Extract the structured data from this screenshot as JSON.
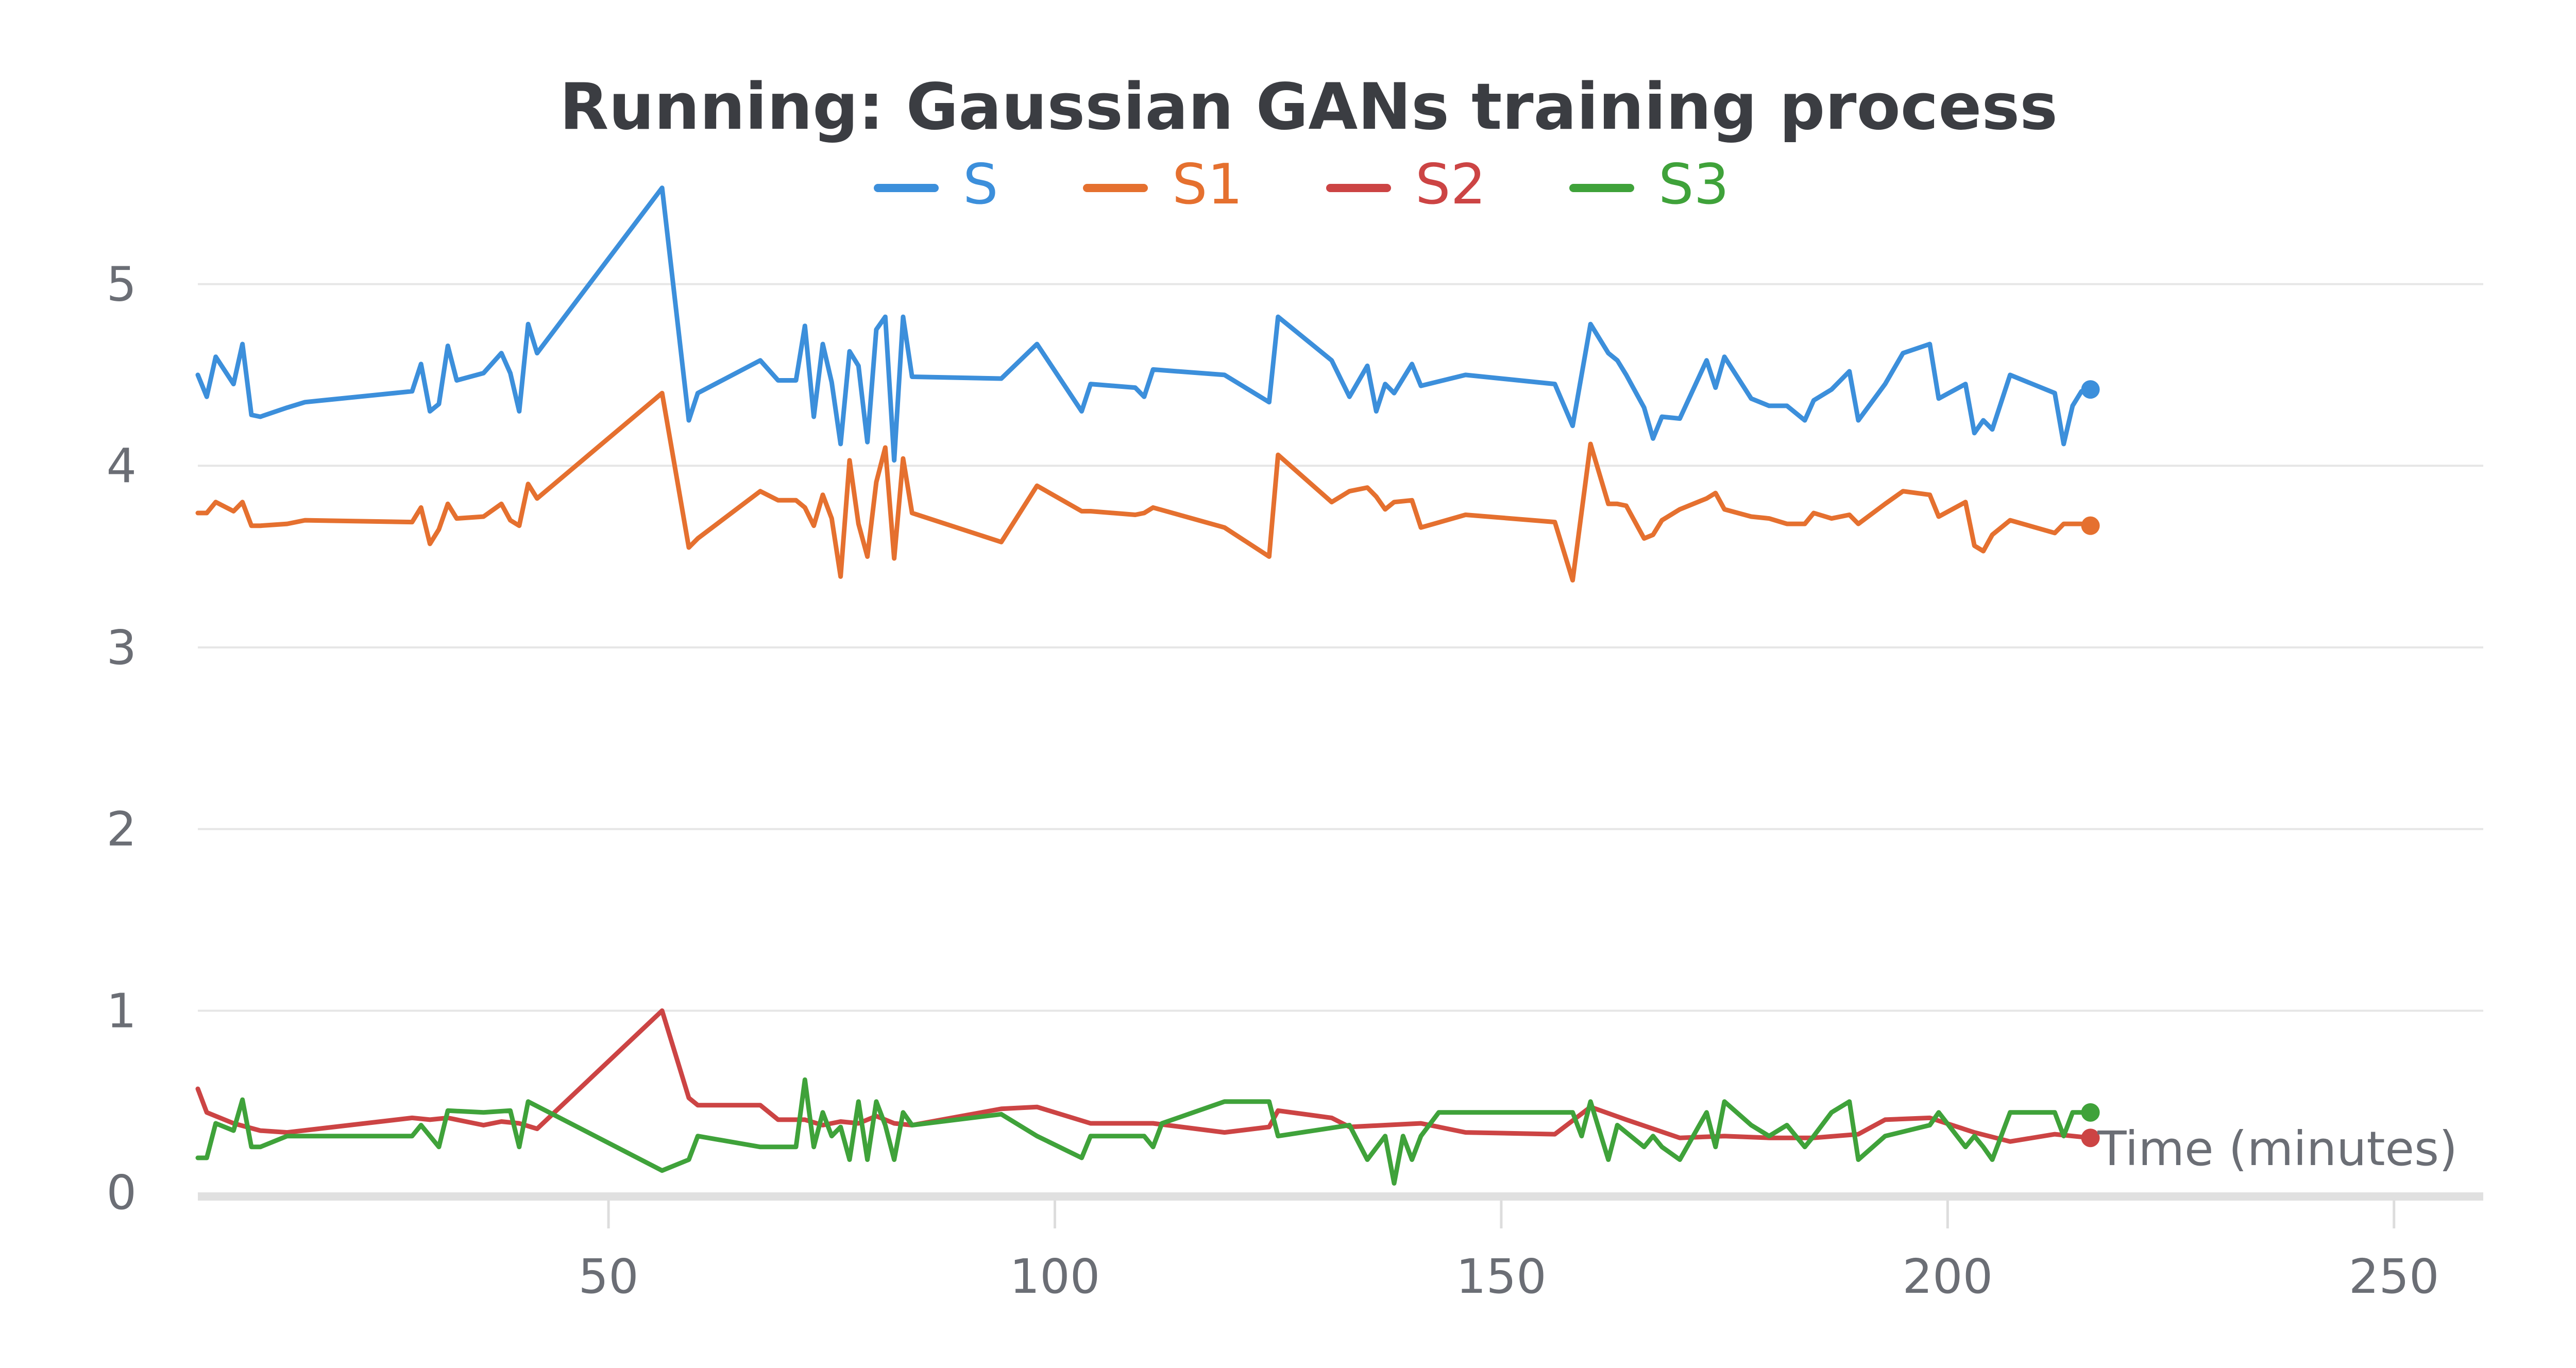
{
  "chart_data": {
    "type": "line",
    "title": "Running: Gaussian GANs training process",
    "xlabel": "Time (minutes)",
    "ylabel": "",
    "xlim": [
      4,
      260
    ],
    "ylim": [
      0,
      5.6
    ],
    "x_ticks": [
      50,
      100,
      150,
      200,
      250
    ],
    "y_ticks": [
      0,
      1,
      2,
      3,
      4,
      5
    ],
    "grid": true,
    "legend": "top-center",
    "series": [
      {
        "name": "S",
        "color": "#3c8fdb",
        "points": [
          [
            4,
            4.5
          ],
          [
            5,
            4.38
          ],
          [
            6,
            4.6
          ],
          [
            8,
            4.45
          ],
          [
            9,
            4.67
          ],
          [
            10,
            4.28
          ],
          [
            11,
            4.27
          ],
          [
            14,
            4.32
          ],
          [
            16,
            4.35
          ],
          [
            28,
            4.41
          ],
          [
            29,
            4.56
          ],
          [
            30,
            4.3
          ],
          [
            31,
            4.34
          ],
          [
            32,
            4.66
          ],
          [
            33,
            4.47
          ],
          [
            36,
            4.51
          ],
          [
            38,
            4.62
          ],
          [
            39,
            4.51
          ],
          [
            40,
            4.3
          ],
          [
            41,
            4.78
          ],
          [
            42,
            4.62
          ],
          [
            56,
            5.53
          ],
          [
            59,
            4.25
          ],
          [
            60,
            4.4
          ],
          [
            67,
            4.58
          ],
          [
            69,
            4.47
          ],
          [
            71,
            4.47
          ],
          [
            72,
            4.77
          ],
          [
            73,
            4.27
          ],
          [
            74,
            4.67
          ],
          [
            75,
            4.46
          ],
          [
            76,
            4.12
          ],
          [
            77,
            4.63
          ],
          [
            78,
            4.55
          ],
          [
            79,
            4.13
          ],
          [
            80,
            4.75
          ],
          [
            81,
            4.82
          ],
          [
            82,
            4.03
          ],
          [
            83,
            4.82
          ],
          [
            84,
            4.49
          ],
          [
            94,
            4.48
          ],
          [
            98,
            4.67
          ],
          [
            103,
            4.3
          ],
          [
            104,
            4.45
          ],
          [
            109,
            4.43
          ],
          [
            110,
            4.38
          ],
          [
            111,
            4.53
          ],
          [
            119,
            4.5
          ],
          [
            124,
            4.35
          ],
          [
            125,
            4.82
          ],
          [
            131,
            4.58
          ],
          [
            133,
            4.38
          ],
          [
            135,
            4.55
          ],
          [
            136,
            4.3
          ],
          [
            137,
            4.45
          ],
          [
            138,
            4.4
          ],
          [
            140,
            4.56
          ],
          [
            141,
            4.44
          ],
          [
            146,
            4.5
          ],
          [
            156,
            4.45
          ],
          [
            158,
            4.22
          ],
          [
            160,
            4.78
          ],
          [
            162,
            4.62
          ],
          [
            163,
            4.58
          ],
          [
            164,
            4.5
          ],
          [
            166,
            4.32
          ],
          [
            167,
            4.15
          ],
          [
            168,
            4.27
          ],
          [
            170,
            4.26
          ],
          [
            173,
            4.58
          ],
          [
            174,
            4.43
          ],
          [
            175,
            4.6
          ],
          [
            178,
            4.37
          ],
          [
            180,
            4.33
          ],
          [
            182,
            4.33
          ],
          [
            184,
            4.25
          ],
          [
            185,
            4.36
          ],
          [
            187,
            4.42
          ],
          [
            189,
            4.52
          ],
          [
            190,
            4.25
          ],
          [
            193,
            4.45
          ],
          [
            195,
            4.62
          ],
          [
            198,
            4.67
          ],
          [
            199,
            4.37
          ],
          [
            202,
            4.45
          ],
          [
            203,
            4.18
          ],
          [
            204,
            4.25
          ],
          [
            205,
            4.2
          ],
          [
            207,
            4.5
          ],
          [
            212,
            4.4
          ],
          [
            213,
            4.12
          ],
          [
            214,
            4.33
          ],
          [
            215,
            4.41
          ],
          [
            216,
            4.42
          ]
        ]
      },
      {
        "name": "S1",
        "color": "#e5702f",
        "points": [
          [
            4,
            3.74
          ],
          [
            5,
            3.74
          ],
          [
            6,
            3.8
          ],
          [
            8,
            3.75
          ],
          [
            9,
            3.8
          ],
          [
            10,
            3.67
          ],
          [
            11,
            3.67
          ],
          [
            14,
            3.68
          ],
          [
            16,
            3.7
          ],
          [
            28,
            3.69
          ],
          [
            29,
            3.77
          ],
          [
            30,
            3.57
          ],
          [
            31,
            3.65
          ],
          [
            32,
            3.79
          ],
          [
            33,
            3.71
          ],
          [
            36,
            3.72
          ],
          [
            38,
            3.79
          ],
          [
            39,
            3.7
          ],
          [
            40,
            3.67
          ],
          [
            41,
            3.9
          ],
          [
            42,
            3.82
          ],
          [
            56,
            4.4
          ],
          [
            59,
            3.55
          ],
          [
            60,
            3.6
          ],
          [
            67,
            3.86
          ],
          [
            69,
            3.81
          ],
          [
            71,
            3.81
          ],
          [
            72,
            3.77
          ],
          [
            73,
            3.67
          ],
          [
            74,
            3.84
          ],
          [
            75,
            3.71
          ],
          [
            76,
            3.39
          ],
          [
            77,
            4.03
          ],
          [
            78,
            3.68
          ],
          [
            79,
            3.5
          ],
          [
            80,
            3.91
          ],
          [
            81,
            4.1
          ],
          [
            82,
            3.49
          ],
          [
            83,
            4.04
          ],
          [
            84,
            3.74
          ],
          [
            94,
            3.58
          ],
          [
            98,
            3.89
          ],
          [
            103,
            3.75
          ],
          [
            104,
            3.75
          ],
          [
            109,
            3.73
          ],
          [
            110,
            3.74
          ],
          [
            111,
            3.77
          ],
          [
            119,
            3.66
          ],
          [
            124,
            3.5
          ],
          [
            125,
            4.06
          ],
          [
            131,
            3.8
          ],
          [
            133,
            3.86
          ],
          [
            135,
            3.88
          ],
          [
            136,
            3.83
          ],
          [
            137,
            3.76
          ],
          [
            138,
            3.8
          ],
          [
            140,
            3.81
          ],
          [
            141,
            3.66
          ],
          [
            146,
            3.73
          ],
          [
            156,
            3.69
          ],
          [
            158,
            3.37
          ],
          [
            160,
            4.12
          ],
          [
            162,
            3.79
          ],
          [
            163,
            3.79
          ],
          [
            164,
            3.78
          ],
          [
            166,
            3.6
          ],
          [
            167,
            3.62
          ],
          [
            168,
            3.7
          ],
          [
            170,
            3.76
          ],
          [
            173,
            3.82
          ],
          [
            174,
            3.85
          ],
          [
            175,
            3.76
          ],
          [
            178,
            3.72
          ],
          [
            180,
            3.71
          ],
          [
            182,
            3.68
          ],
          [
            184,
            3.68
          ],
          [
            185,
            3.74
          ],
          [
            187,
            3.71
          ],
          [
            189,
            3.73
          ],
          [
            190,
            3.68
          ],
          [
            193,
            3.79
          ],
          [
            195,
            3.86
          ],
          [
            198,
            3.84
          ],
          [
            199,
            3.72
          ],
          [
            202,
            3.8
          ],
          [
            203,
            3.56
          ],
          [
            204,
            3.53
          ],
          [
            205,
            3.62
          ],
          [
            207,
            3.7
          ],
          [
            212,
            3.63
          ],
          [
            213,
            3.68
          ],
          [
            214,
            3.68
          ],
          [
            215,
            3.68
          ],
          [
            216,
            3.67
          ]
        ]
      },
      {
        "name": "S2",
        "color": "#cc4444",
        "points": [
          [
            4,
            0.57
          ],
          [
            5,
            0.44
          ],
          [
            8,
            0.38
          ],
          [
            11,
            0.34
          ],
          [
            14,
            0.33
          ],
          [
            28,
            0.41
          ],
          [
            30,
            0.4
          ],
          [
            32,
            0.41
          ],
          [
            36,
            0.37
          ],
          [
            38,
            0.39
          ],
          [
            40,
            0.38
          ],
          [
            42,
            0.35
          ],
          [
            56,
            1.0
          ],
          [
            59,
            0.52
          ],
          [
            60,
            0.48
          ],
          [
            67,
            0.48
          ],
          [
            69,
            0.4
          ],
          [
            72,
            0.4
          ],
          [
            74,
            0.37
          ],
          [
            76,
            0.39
          ],
          [
            78,
            0.38
          ],
          [
            80,
            0.42
          ],
          [
            82,
            0.38
          ],
          [
            84,
            0.37
          ],
          [
            94,
            0.46
          ],
          [
            98,
            0.47
          ],
          [
            104,
            0.38
          ],
          [
            111,
            0.38
          ],
          [
            119,
            0.33
          ],
          [
            124,
            0.36
          ],
          [
            125,
            0.45
          ],
          [
            131,
            0.41
          ],
          [
            133,
            0.36
          ],
          [
            137,
            0.37
          ],
          [
            141,
            0.38
          ],
          [
            146,
            0.33
          ],
          [
            156,
            0.32
          ],
          [
            160,
            0.47
          ],
          [
            164,
            0.4
          ],
          [
            170,
            0.3
          ],
          [
            175,
            0.31
          ],
          [
            180,
            0.3
          ],
          [
            185,
            0.3
          ],
          [
            190,
            0.32
          ],
          [
            193,
            0.4
          ],
          [
            198,
            0.41
          ],
          [
            203,
            0.33
          ],
          [
            207,
            0.28
          ],
          [
            212,
            0.32
          ],
          [
            216,
            0.3
          ]
        ]
      },
      {
        "name": "S3",
        "color": "#3fa23a",
        "points": [
          [
            4,
            0.19
          ],
          [
            5,
            0.19
          ],
          [
            6,
            0.38
          ],
          [
            8,
            0.34
          ],
          [
            9,
            0.51
          ],
          [
            10,
            0.25
          ],
          [
            11,
            0.25
          ],
          [
            14,
            0.31
          ],
          [
            28,
            0.31
          ],
          [
            29,
            0.37
          ],
          [
            31,
            0.25
          ],
          [
            32,
            0.45
          ],
          [
            36,
            0.44
          ],
          [
            39,
            0.45
          ],
          [
            40,
            0.25
          ],
          [
            41,
            0.5
          ],
          [
            56,
            0.12
          ],
          [
            59,
            0.18
          ],
          [
            60,
            0.31
          ],
          [
            67,
            0.25
          ],
          [
            71,
            0.25
          ],
          [
            72,
            0.62
          ],
          [
            73,
            0.25
          ],
          [
            74,
            0.44
          ],
          [
            75,
            0.31
          ],
          [
            76,
            0.36
          ],
          [
            77,
            0.18
          ],
          [
            78,
            0.5
          ],
          [
            79,
            0.18
          ],
          [
            80,
            0.5
          ],
          [
            81,
            0.37
          ],
          [
            82,
            0.18
          ],
          [
            83,
            0.44
          ],
          [
            84,
            0.37
          ],
          [
            94,
            0.43
          ],
          [
            98,
            0.31
          ],
          [
            103,
            0.19
          ],
          [
            104,
            0.31
          ],
          [
            110,
            0.31
          ],
          [
            111,
            0.25
          ],
          [
            112,
            0.38
          ],
          [
            119,
            0.5
          ],
          [
            124,
            0.5
          ],
          [
            125,
            0.31
          ],
          [
            133,
            0.37
          ],
          [
            135,
            0.18
          ],
          [
            137,
            0.31
          ],
          [
            138,
            0.05
          ],
          [
            139,
            0.31
          ],
          [
            140,
            0.18
          ],
          [
            141,
            0.31
          ],
          [
            143,
            0.44
          ],
          [
            158,
            0.44
          ],
          [
            159,
            0.31
          ],
          [
            160,
            0.5
          ],
          [
            162,
            0.18
          ],
          [
            163,
            0.37
          ],
          [
            166,
            0.25
          ],
          [
            167,
            0.31
          ],
          [
            168,
            0.25
          ],
          [
            170,
            0.18
          ],
          [
            173,
            0.44
          ],
          [
            174,
            0.25
          ],
          [
            175,
            0.5
          ],
          [
            178,
            0.37
          ],
          [
            180,
            0.31
          ],
          [
            182,
            0.37
          ],
          [
            184,
            0.25
          ],
          [
            185,
            0.31
          ],
          [
            187,
            0.44
          ],
          [
            189,
            0.5
          ],
          [
            190,
            0.18
          ],
          [
            193,
            0.31
          ],
          [
            198,
            0.37
          ],
          [
            199,
            0.44
          ],
          [
            202,
            0.25
          ],
          [
            203,
            0.31
          ],
          [
            204,
            0.25
          ],
          [
            205,
            0.18
          ],
          [
            207,
            0.44
          ],
          [
            212,
            0.44
          ],
          [
            213,
            0.31
          ],
          [
            214,
            0.44
          ],
          [
            216,
            0.44
          ]
        ]
      }
    ]
  }
}
